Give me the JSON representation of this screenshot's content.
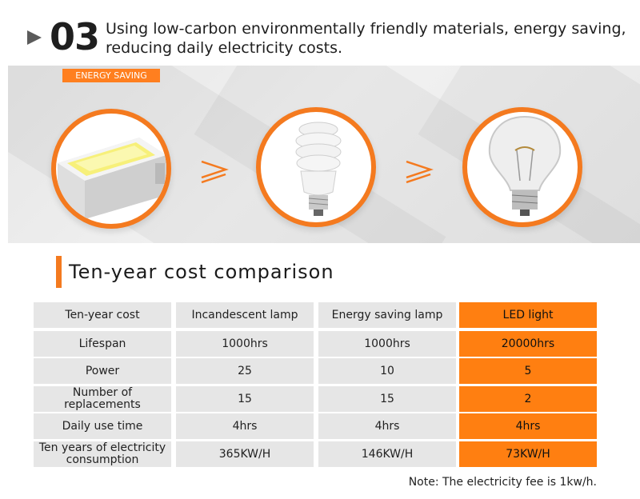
{
  "header": {
    "number": "03",
    "headline": "Using low-carbon environmentally friendly materials, energy saving, reducing daily electricity costs."
  },
  "banner": {
    "tag": "ENERGY SAVING",
    "comparators": [
      "≥",
      "≥"
    ]
  },
  "comparison": {
    "title": "Ten-year cost comparison",
    "columns": [
      "Ten-year cost",
      "Incandescent lamp",
      "Energy saving lamp",
      "LED light"
    ],
    "rows": [
      [
        "Lifespan",
        "1000hrs",
        "1000hrs",
        "20000hrs"
      ],
      [
        "Power",
        "25",
        "10",
        "5"
      ],
      [
        "Number of replacements",
        "15",
        "15",
        "2"
      ],
      [
        "Daily use time",
        "4hrs",
        "4hrs",
        "4hrs"
      ],
      [
        "Ten years of electricity consumption",
        "365KW/H",
        "146KW/H",
        "73KW/H"
      ]
    ],
    "note": "Note: The electricity fee is 1kw/h."
  },
  "colors": {
    "accent": "#f47a1f",
    "highlight": "#ff7f11",
    "cell": "#e6e6e6"
  },
  "icons": [
    "play-arrow-icon",
    "smd-led-chip-icon",
    "cfl-spiral-bulb-icon",
    "incandescent-bulb-icon"
  ]
}
